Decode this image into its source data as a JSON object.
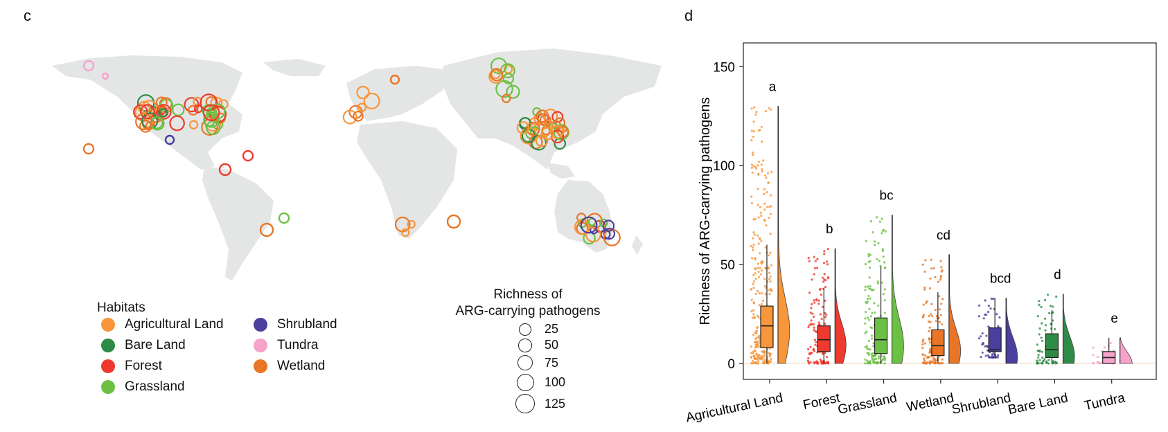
{
  "panels": {
    "left_label": "c",
    "right_label": "d"
  },
  "map": {
    "legend": {
      "title": "Habitats",
      "items": [
        {
          "label": "Agricultural Land",
          "color": "#f7963a"
        },
        {
          "label": "Bare Land",
          "color": "#2e8b45"
        },
        {
          "label": "Forest",
          "color": "#ee3a2e"
        },
        {
          "label": "Grassland",
          "color": "#6cc144"
        },
        {
          "label": "Shrubland",
          "color": "#4b3f9e"
        },
        {
          "label": "Tundra",
          "color": "#f5a3cb"
        },
        {
          "label": "Wetland",
          "color": "#e97626"
        }
      ]
    },
    "size_legend": {
      "title_line1": "Richness of",
      "title_line2": "ARG-carrying pathogens",
      "values": [
        "25",
        "50",
        "75",
        "100",
        "125"
      ]
    },
    "land_color": "#e4e6e6"
  },
  "chart_data": {
    "type": "box",
    "ylabel": "Richness of ARG-carrying pathogens",
    "ylim": [
      0,
      155
    ],
    "yticks": [
      0,
      50,
      100,
      150
    ],
    "grid": false,
    "groups": [
      {
        "name": "Agricultural Land",
        "color": "#f7963a",
        "whisker_low": 0,
        "q1": 8,
        "median": 19,
        "q3": 29,
        "whisker_high": 60,
        "max": 130,
        "letter": "a"
      },
      {
        "name": "Forest",
        "color": "#ee3a2e",
        "whisker_low": 0,
        "q1": 6,
        "median": 12,
        "q3": 19,
        "whisker_high": 38,
        "max": 58,
        "letter": "b"
      },
      {
        "name": "Grassland",
        "color": "#6cc144",
        "whisker_low": 0,
        "q1": 5,
        "median": 12,
        "q3": 23,
        "whisker_high": 49,
        "max": 75,
        "letter": "bc"
      },
      {
        "name": "Wetland",
        "color": "#e97626",
        "whisker_low": 0,
        "q1": 4,
        "median": 9,
        "q3": 17,
        "whisker_high": 36,
        "max": 55,
        "letter": "cd"
      },
      {
        "name": "Shrubland",
        "color": "#4b3f9e",
        "whisker_low": 3,
        "q1": 6,
        "median": 7,
        "q3": 18,
        "whisker_high": 33,
        "max": 33,
        "letter": "bcd"
      },
      {
        "name": "Bare Land",
        "color": "#2e8b45",
        "whisker_low": 0,
        "q1": 3,
        "median": 7,
        "q3": 15,
        "whisker_high": 27,
        "max": 35,
        "letter": "d"
      },
      {
        "name": "Tundra",
        "color": "#f5a3cb",
        "whisker_low": 0,
        "q1": 0,
        "median": 3,
        "q3": 6,
        "whisker_high": 13,
        "max": 13,
        "letter": "e"
      }
    ]
  }
}
